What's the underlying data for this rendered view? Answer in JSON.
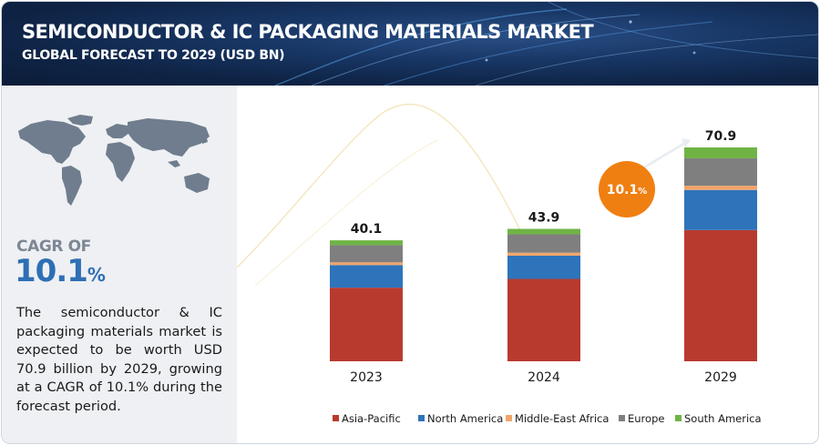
{
  "header": {
    "title": "SEMICONDUCTOR & IC PACKAGING MATERIALS MARKET",
    "subtitle": "GLOBAL FORECAST TO 2029 (USD BN)"
  },
  "left_panel": {
    "cagr_label": "CAGR OF",
    "cagr_value": "10.1",
    "cagr_suffix": "%",
    "description": "The semiconductor & IC packaging materials market is expected to be worth USD 70.9 billion by 2029, growing at a CAGR of 10.1% during the forecast period."
  },
  "callout": {
    "value": "10.1",
    "suffix": "%",
    "color": "#f07f12"
  },
  "chart_data": {
    "type": "bar",
    "stacked": true,
    "categories": [
      "2023",
      "2024",
      "2029"
    ],
    "totals": [
      "40.1",
      "43.9",
      "70.9"
    ],
    "series": [
      {
        "name": "Asia-Pacific",
        "color": "#b83a2f",
        "values": [
          24.4,
          27.3,
          43.5
        ]
      },
      {
        "name": "North America",
        "color": "#2e74ba",
        "values": [
          7.5,
          7.7,
          13.3
        ]
      },
      {
        "name": "Middle-East Africa",
        "color": "#f2a56b",
        "values": [
          0.9,
          1.0,
          1.4
        ]
      },
      {
        "name": "Europe",
        "color": "#7f7f7f",
        "values": [
          5.7,
          6.1,
          9.1
        ]
      },
      {
        "name": "South America",
        "color": "#6fb345",
        "values": [
          1.6,
          1.8,
          3.6
        ]
      }
    ],
    "ylim": [
      0,
      70.9
    ],
    "legend_position": "bottom",
    "grid": false
  }
}
